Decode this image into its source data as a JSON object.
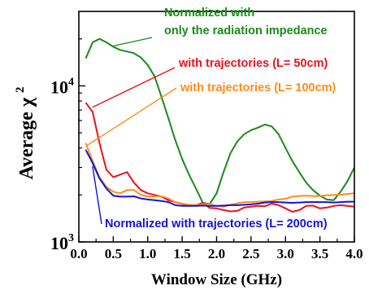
{
  "chart_data": {
    "type": "line",
    "xlabel": "Window Size (GHz)",
    "ylabel_main": "Average χ",
    "ylabel_sup": "2",
    "y_scale": "log",
    "xlim": [
      0.0,
      4.0
    ],
    "ylim": [
      1000,
      30000
    ],
    "x_ticks": [
      "0.0",
      "0.5",
      "1.0",
      "1.5",
      "2.0",
      "2.5",
      "3.0",
      "3.5",
      "4.0"
    ],
    "y_ticks": [
      {
        "value": 1000,
        "base": "10",
        "exp": "3"
      },
      {
        "value": 10000,
        "base": "10",
        "exp": "4"
      }
    ],
    "grid": false,
    "series": [
      {
        "id": "radiation",
        "color": "#1a8a1a",
        "x": [
          0.1,
          0.2,
          0.3,
          0.4,
          0.5,
          0.6,
          0.7,
          0.8,
          0.9,
          1.0,
          1.1,
          1.2,
          1.3,
          1.4,
          1.5,
          1.6,
          1.7,
          1.8,
          1.9,
          2.0,
          2.1,
          2.2,
          2.3,
          2.4,
          2.5,
          2.6,
          2.7,
          2.8,
          2.9,
          3.0,
          3.1,
          3.2,
          3.3,
          3.4,
          3.5,
          3.6,
          3.7,
          3.8,
          3.9,
          4.0
        ],
        "y": [
          15000,
          19000,
          20000,
          19000,
          17800,
          17000,
          16600,
          16200,
          15200,
          13600,
          11500,
          8500,
          6200,
          4500,
          3400,
          2700,
          2200,
          1780,
          1750,
          2050,
          2800,
          3700,
          4400,
          4900,
          5200,
          5400,
          5650,
          5500,
          4900,
          4000,
          3300,
          2800,
          2400,
          2150,
          1980,
          1870,
          1850,
          2100,
          2450,
          3000
        ]
      },
      {
        "id": "traj50",
        "color": "#e8141e",
        "x": [
          0.1,
          0.2,
          0.3,
          0.4,
          0.5,
          0.6,
          0.7,
          0.8,
          0.9,
          1.0,
          1.1,
          1.2,
          1.3,
          1.4,
          1.5,
          1.6,
          1.7,
          1.8,
          1.9,
          2.0,
          2.1,
          2.2,
          2.3,
          2.4,
          2.5,
          2.6,
          2.7,
          2.8,
          2.9,
          3.0,
          3.1,
          3.2,
          3.3,
          3.4,
          3.5,
          3.6,
          3.7,
          3.8,
          3.9,
          4.0
        ],
        "y": [
          7800,
          6800,
          4300,
          2900,
          2600,
          2700,
          2800,
          2400,
          2150,
          2050,
          2000,
          1950,
          1850,
          1800,
          1750,
          1700,
          1720,
          1780,
          1650,
          1640,
          1600,
          1570,
          1580,
          1660,
          1680,
          1700,
          1690,
          1760,
          1720,
          1640,
          1560,
          1600,
          1700,
          1710,
          1640,
          1660,
          1700,
          1720,
          1700,
          1680
        ]
      },
      {
        "id": "traj100",
        "color": "#ff8c1a",
        "x": [
          0.1,
          0.2,
          0.3,
          0.4,
          0.5,
          0.6,
          0.7,
          0.8,
          0.9,
          1.0,
          1.1,
          1.2,
          1.3,
          1.4,
          1.5,
          1.6,
          1.7,
          1.8,
          1.9,
          2.0,
          2.1,
          2.2,
          2.3,
          2.4,
          2.5,
          2.6,
          2.7,
          2.8,
          2.9,
          3.0,
          3.1,
          3.2,
          3.3,
          3.4,
          3.5,
          3.6,
          3.7,
          3.8,
          3.9,
          4.0
        ],
        "y": [
          4300,
          3300,
          2600,
          2250,
          2100,
          2050,
          2150,
          2150,
          2000,
          1950,
          1960,
          1960,
          1900,
          1800,
          1760,
          1730,
          1720,
          1740,
          1750,
          1700,
          1680,
          1730,
          1770,
          1800,
          1800,
          1810,
          1820,
          1830,
          1870,
          1890,
          1950,
          1970,
          1980,
          1970,
          1970,
          1990,
          2000,
          2010,
          2030,
          2050
        ]
      },
      {
        "id": "traj200",
        "color": "#1414d2",
        "x": [
          0.1,
          0.2,
          0.3,
          0.4,
          0.5,
          0.6,
          0.7,
          0.8,
          0.9,
          1.0,
          1.1,
          1.2,
          1.3,
          1.4,
          1.5,
          1.6,
          1.7,
          1.8,
          1.9,
          2.0,
          2.1,
          2.2,
          2.3,
          2.4,
          2.5,
          2.6,
          2.7,
          2.8,
          2.9,
          3.0,
          3.1,
          3.2,
          3.3,
          3.4,
          3.5,
          3.6,
          3.7,
          3.8,
          3.9,
          4.0
        ],
        "y": [
          3900,
          3200,
          2550,
          2200,
          1980,
          1950,
          1950,
          1960,
          1900,
          1870,
          1850,
          1830,
          1800,
          1720,
          1700,
          1700,
          1700,
          1710,
          1700,
          1700,
          1710,
          1720,
          1720,
          1730,
          1740,
          1760,
          1790,
          1800,
          1800,
          1790,
          1780,
          1790,
          1800,
          1800,
          1800,
          1800,
          1790,
          1800,
          1810,
          1810
        ]
      }
    ],
    "annotations": [
      {
        "id": "radiation",
        "lines": [
          "Normalized with",
          "only the radiation impedance"
        ],
        "color": "#1a8a1a",
        "x": 0.5,
        "y": 18000
      },
      {
        "id": "traj50",
        "lines": [
          "with trajectories (L= 50cm)"
        ],
        "color": "#e8141e",
        "x": 0.2,
        "y": 7300
      },
      {
        "id": "traj100",
        "lines": [
          "with trajectories (L= 100cm)"
        ],
        "color": "#ff8c1a",
        "x": 0.1,
        "y": 4100
      },
      {
        "id": "traj200",
        "lines": [
          "Normalized with trajectories (L= 200cm)"
        ],
        "color": "#1414d2",
        "x": 0.2,
        "y": 3050
      }
    ]
  }
}
